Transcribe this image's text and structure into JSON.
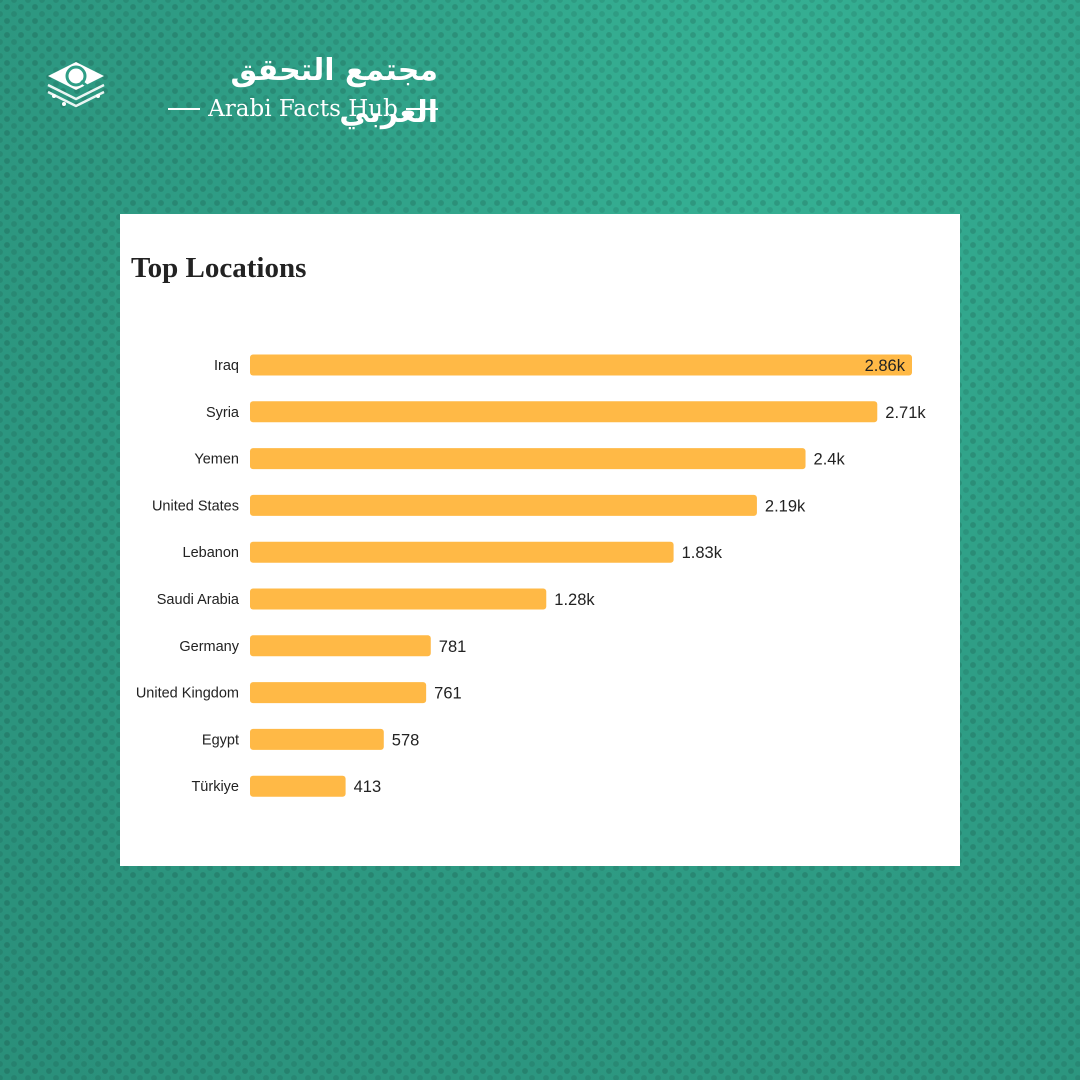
{
  "brand": {
    "arabic_name": "مجتمع التحقق العربي",
    "english_name": "Arabi Facts Hub",
    "logo_icon": "stacked-layers-magnifier-icon"
  },
  "colors": {
    "background": "#2f9e86",
    "bar": "#ffb946",
    "text": "#222222"
  },
  "chart_data": {
    "type": "bar",
    "orientation": "horizontal",
    "title": "Top Locations",
    "categories": [
      "Iraq",
      "Syria",
      "Yemen",
      "United States",
      "Lebanon",
      "Saudi Arabia",
      "Germany",
      "United Kingdom",
      "Egypt",
      "Türkiye"
    ],
    "values": [
      2860,
      2710,
      2400,
      2190,
      1830,
      1280,
      781,
      761,
      578,
      413
    ],
    "value_labels": [
      "2.86k",
      "2.71k",
      "2.4k",
      "2.19k",
      "1.83k",
      "1.28k",
      "781",
      "761",
      "578",
      "413"
    ],
    "xlim": [
      0,
      2860
    ],
    "grid": false,
    "legend": "none"
  }
}
